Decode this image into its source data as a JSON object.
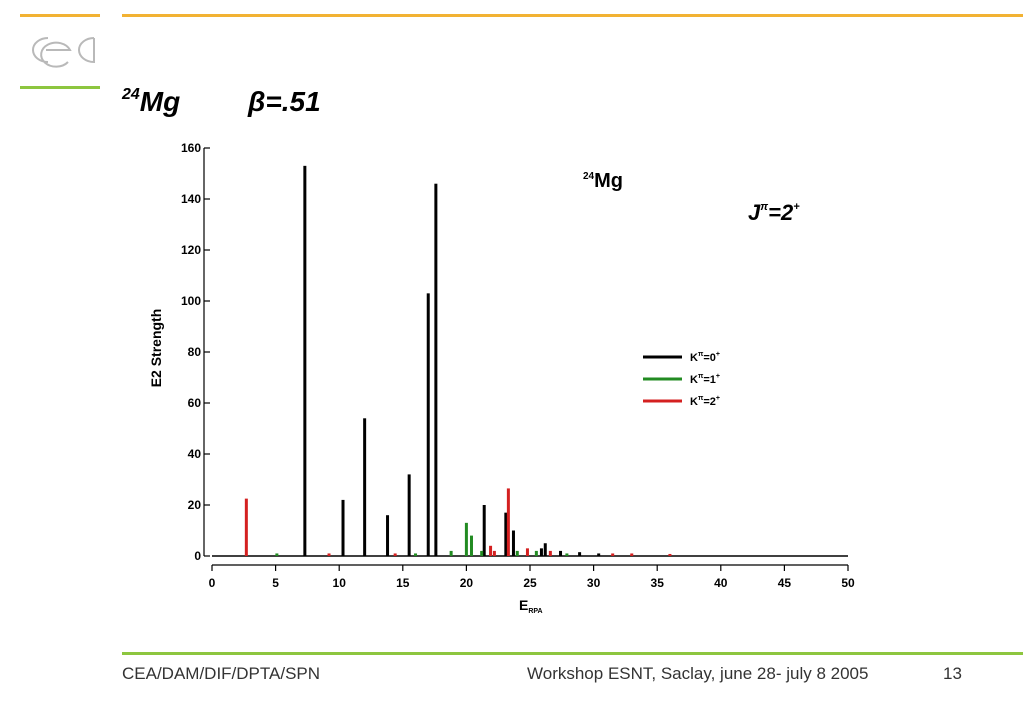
{
  "slide": {
    "title_mass": "24",
    "title_element": "Mg",
    "title_beta": "β=.51",
    "footer_left": "CEA/DAM/DIF/DPTA/SPN",
    "footer_center": "Workshop ESNT, Saclay,  june 28- july 8 2005",
    "page_number": "13",
    "logo_icon": "cea-logo-icon",
    "colors": {
      "accent_orange": "#f2b233",
      "accent_green": "#8dc63f",
      "logo_gray": "#b9b9b9"
    }
  },
  "chart_data": {
    "type": "bar",
    "annotations": {
      "nucleus_mass": "24",
      "nucleus_element": "Mg",
      "jpi_base": "J",
      "jpi_sup": "π",
      "jpi_value": "=2",
      "jpi_parity": "+"
    },
    "xlabel_main": "E",
    "xlabel_sub": "RPA",
    "ylabel": "E2 Strength",
    "xlim": [
      0,
      50
    ],
    "ylim": [
      0,
      160
    ],
    "x_ticks": [
      0,
      5,
      10,
      15,
      20,
      25,
      30,
      35,
      40,
      45,
      50
    ],
    "y_ticks": [
      0,
      20,
      40,
      60,
      80,
      100,
      120,
      140,
      160
    ],
    "legend_position": "right",
    "series": [
      {
        "name": "K",
        "legend_sup": "π",
        "legend_value": "=0",
        "legend_parity": "+",
        "color": "#000000",
        "x": [
          7.3,
          10.3,
          12.0,
          13.8,
          15.5,
          17.0,
          17.6,
          21.4,
          23.1,
          23.7,
          25.9,
          26.2,
          27.4,
          28.9,
          30.4
        ],
        "y": [
          153,
          22,
          54,
          16,
          32,
          103,
          146,
          20,
          17,
          10,
          3,
          5,
          2,
          1.5,
          1
        ]
      },
      {
        "name": "K",
        "legend_sup": "π",
        "legend_value": "=1",
        "legend_parity": "+",
        "color": "#228b22",
        "x": [
          5.1,
          16.0,
          18.8,
          20.0,
          20.4,
          21.2,
          24.0,
          25.5,
          27.9
        ],
        "y": [
          1,
          1,
          2,
          13,
          8,
          2,
          2,
          2,
          1
        ]
      },
      {
        "name": "K",
        "legend_sup": "π",
        "legend_value": "=2",
        "legend_parity": "+",
        "color": "#d42020",
        "x": [
          2.7,
          9.2,
          14.4,
          21.9,
          22.2,
          23.3,
          24.8,
          26.6,
          31.5,
          33.0,
          36.0
        ],
        "y": [
          22.5,
          1,
          1,
          4,
          2,
          26.5,
          3,
          2,
          1,
          1,
          0.8
        ]
      }
    ]
  }
}
